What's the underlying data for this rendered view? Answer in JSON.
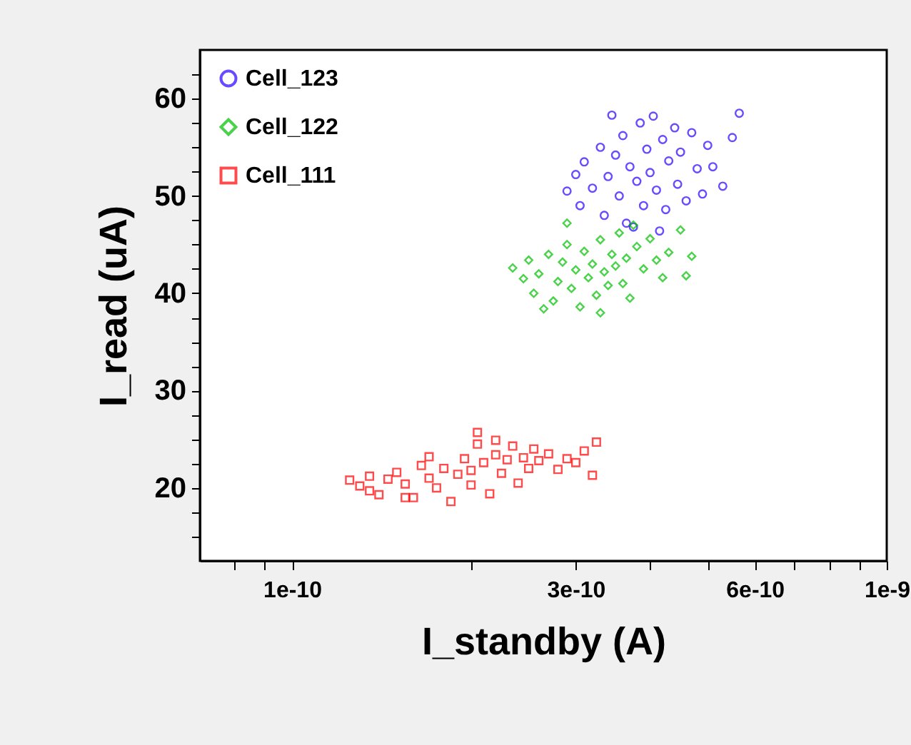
{
  "chart_data": {
    "type": "scatter",
    "xlabel": "I_standby (A)",
    "ylabel": "I_read (uA)",
    "log": "x",
    "grid": false,
    "legend": "top left",
    "xlim": [
      7e-11,
      1e-09
    ],
    "xticks": [
      {
        "value": 8e-11,
        "label": null
      },
      {
        "value": 9e-11,
        "label": null
      },
      1e-10,
      {
        "value": 2e-10,
        "label": null
      },
      3e-10,
      {
        "value": 4e-10,
        "label": null
      },
      {
        "value": 5e-10,
        "label": null
      },
      6e-10,
      {
        "value": 7e-10,
        "label": null
      },
      {
        "value": 8e-10,
        "label": null
      },
      {
        "value": 9e-10,
        "label": null
      },
      {
        "value": 1e-09,
        "label": "1e-9"
      }
    ],
    "ylim": [
      12.5,
      65
    ],
    "yticks": [
      {
        "value": 15,
        "label": null
      },
      {
        "value": 17.5,
        "label": null
      },
      20,
      {
        "value": 22.5,
        "label": null
      },
      {
        "value": 25,
        "label": null
      },
      {
        "value": 27.5,
        "label": null
      },
      30,
      {
        "value": 32.5,
        "label": null
      },
      {
        "value": 35,
        "label": null
      },
      {
        "value": 37.5,
        "label": null
      },
      40,
      {
        "value": 42.5,
        "label": null
      },
      {
        "value": 45,
        "label": null
      },
      {
        "value": 47.5,
        "label": null
      },
      50,
      {
        "value": 52.5,
        "label": null
      },
      {
        "value": 55,
        "label": null
      },
      {
        "value": 57.5,
        "label": null
      },
      60,
      {
        "value": 62.5,
        "label": null
      }
    ],
    "series": [
      {
        "name": "Cell_123",
        "color": "#2a00ff",
        "marker": "circle",
        "x": [
          2.9e-10,
          3e-10,
          3.05e-10,
          3.1e-10,
          3.2e-10,
          3.3e-10,
          3.35e-10,
          3.4e-10,
          3.5e-10,
          3.55e-10,
          3.6e-10,
          3.65e-10,
          3.7e-10,
          3.8e-10,
          3.85e-10,
          3.9e-10,
          3.95e-10,
          4e-10,
          4.05e-10,
          4.1e-10,
          4.2e-10,
          4.25e-10,
          4.3e-10,
          4.4e-10,
          4.45e-10,
          4.5e-10,
          4.6e-10,
          4.7e-10,
          4.8e-10,
          4.9e-10,
          5e-10,
          5.1e-10,
          5.3e-10,
          5.5e-10,
          5.65e-10,
          3.45e-10,
          4.15e-10,
          3.75e-10
        ],
        "values": [
          50.5,
          52.2,
          49.0,
          53.5,
          50.8,
          55.0,
          48.0,
          52.0,
          54.2,
          50.0,
          56.2,
          47.2,
          53.0,
          51.5,
          57.5,
          49.0,
          54.8,
          52.4,
          58.2,
          50.6,
          55.8,
          48.6,
          53.6,
          57.0,
          51.2,
          54.5,
          49.5,
          56.5,
          52.8,
          50.2,
          55.2,
          53.0,
          51.0,
          56.0,
          58.5,
          58.3,
          46.4,
          46.8
        ]
      },
      {
        "name": "Cell_122",
        "color": "#00c000",
        "marker": "diamond",
        "x": [
          2.35e-10,
          2.45e-10,
          2.5e-10,
          2.55e-10,
          2.6e-10,
          2.7e-10,
          2.75e-10,
          2.8e-10,
          2.85e-10,
          2.9e-10,
          2.95e-10,
          3e-10,
          3.05e-10,
          3.1e-10,
          3.15e-10,
          3.2e-10,
          3.25e-10,
          3.3e-10,
          3.35e-10,
          3.4e-10,
          3.45e-10,
          3.5e-10,
          3.55e-10,
          3.6e-10,
          3.65e-10,
          3.7e-10,
          3.8e-10,
          3.9e-10,
          4e-10,
          4.1e-10,
          4.2e-10,
          4.3e-10,
          4.5e-10,
          4.7e-10,
          4.6e-10,
          2.9e-10,
          3.3e-10,
          2.65e-10,
          3.75e-10
        ],
        "values": [
          42.6,
          41.5,
          43.4,
          40.0,
          42.0,
          44.0,
          39.2,
          41.2,
          43.2,
          45.0,
          40.5,
          42.4,
          38.6,
          44.3,
          41.6,
          43.0,
          39.8,
          45.5,
          42.2,
          40.8,
          44.0,
          42.8,
          46.2,
          41.0,
          43.6,
          39.5,
          44.8,
          42.5,
          45.6,
          43.4,
          41.6,
          44.2,
          46.5,
          43.8,
          41.8,
          47.2,
          38.0,
          38.4,
          47.0
        ]
      },
      {
        "name": "Cell_111",
        "color": "#ff0000",
        "marker": "square",
        "x": [
          1.25e-10,
          1.3e-10,
          1.35e-10,
          1.4e-10,
          1.45e-10,
          1.5e-10,
          1.55e-10,
          1.6e-10,
          1.65e-10,
          1.7e-10,
          1.75e-10,
          1.8e-10,
          1.85e-10,
          1.9e-10,
          1.95e-10,
          2e-10,
          2e-10,
          2.05e-10,
          2.1e-10,
          2.15e-10,
          2.2e-10,
          2.25e-10,
          2.3e-10,
          2.35e-10,
          2.4e-10,
          2.45e-10,
          2.5e-10,
          2.55e-10,
          2.6e-10,
          2.7e-10,
          2.8e-10,
          2.9e-10,
          3e-10,
          3.2e-10,
          3.1e-10,
          2.05e-10,
          2.2e-10,
          3.25e-10,
          1.7e-10,
          1.55e-10,
          1.35e-10
        ],
        "values": [
          20.8,
          20.2,
          21.2,
          19.3,
          20.9,
          21.6,
          20.4,
          19.0,
          22.3,
          21.0,
          20.0,
          22.0,
          18.6,
          21.4,
          23.0,
          21.8,
          20.3,
          24.5,
          22.6,
          19.4,
          23.4,
          21.5,
          22.9,
          24.3,
          20.5,
          23.1,
          22.0,
          24.0,
          22.8,
          23.5,
          21.9,
          23.0,
          22.6,
          21.3,
          23.8,
          25.7,
          24.9,
          24.7,
          23.2,
          19.0,
          19.7
        ]
      }
    ]
  }
}
